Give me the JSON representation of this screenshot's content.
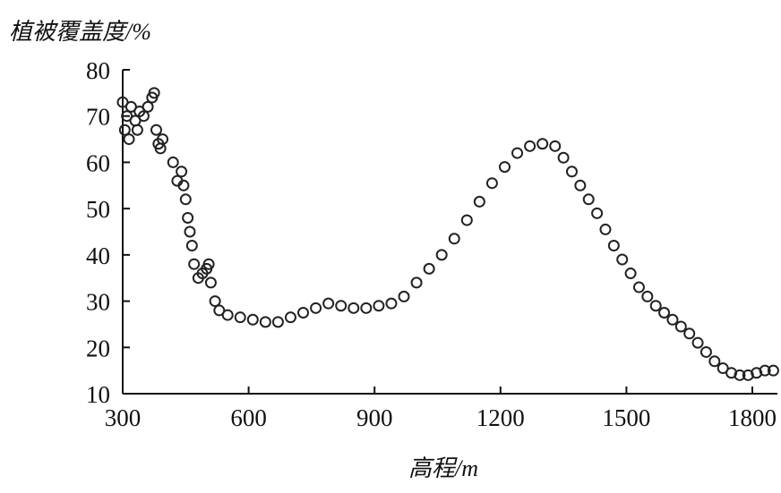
{
  "chart_data": {
    "type": "scatter",
    "y_label": "植被覆盖度/%",
    "x_label": "高程/m",
    "xlim": [
      300,
      1860
    ],
    "ylim": [
      10,
      80
    ],
    "xticks": [
      300,
      600,
      900,
      1200,
      1500,
      1800
    ],
    "yticks": [
      10,
      20,
      30,
      40,
      50,
      60,
      70,
      80
    ],
    "color": "#222222",
    "x": [
      300,
      305,
      310,
      315,
      320,
      330,
      335,
      340,
      350,
      360,
      370,
      375,
      380,
      385,
      390,
      395,
      420,
      430,
      440,
      445,
      450,
      455,
      460,
      465,
      470,
      480,
      490,
      500,
      505,
      510,
      520,
      530,
      550,
      580,
      610,
      640,
      670,
      700,
      730,
      760,
      790,
      820,
      850,
      880,
      910,
      940,
      970,
      1000,
      1030,
      1060,
      1090,
      1120,
      1150,
      1180,
      1210,
      1240,
      1270,
      1300,
      1330,
      1350,
      1370,
      1390,
      1410,
      1430,
      1450,
      1470,
      1490,
      1510,
      1530,
      1550,
      1570,
      1590,
      1610,
      1630,
      1650,
      1670,
      1690,
      1710,
      1730,
      1750,
      1770,
      1790,
      1810,
      1830,
      1850
    ],
    "values": [
      73,
      67,
      70,
      65,
      72,
      69,
      67,
      71,
      70,
      72,
      74,
      75,
      67,
      64,
      63,
      65,
      60,
      56,
      58,
      55,
      52,
      48,
      45,
      42,
      38,
      35,
      36,
      37,
      38,
      34,
      30,
      28,
      27,
      26.5,
      26,
      25.5,
      25.5,
      26.5,
      27.5,
      28.5,
      29.5,
      29,
      28.5,
      28.5,
      29,
      29.5,
      31,
      34,
      37,
      40,
      43.5,
      47.5,
      51.5,
      55.5,
      59,
      62,
      63.5,
      64,
      63.5,
      61,
      58,
      55,
      52,
      49,
      45.5,
      42,
      39,
      36,
      33,
      31,
      29,
      27.5,
      26,
      24.5,
      23,
      21,
      19,
      17,
      15.5,
      14.5,
      14,
      14,
      14.5,
      15,
      15
    ]
  }
}
